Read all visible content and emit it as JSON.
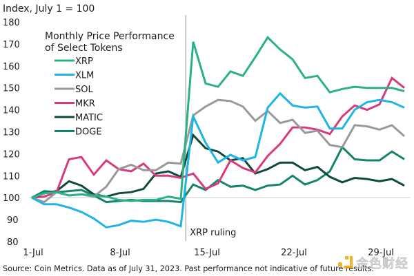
{
  "chart_data": {
    "type": "line",
    "title": "Monthly Price Performance of Select Tokens",
    "title_lines": [
      "Monthly Price Performance",
      "of Select Tokens"
    ],
    "ylabel": "Index, July 1 = 100",
    "xlabel": "",
    "ylim": [
      80,
      180
    ],
    "yticks": [
      80,
      90,
      100,
      110,
      120,
      130,
      140,
      150,
      160,
      170,
      180
    ],
    "ytick_labels": [
      "80",
      "90",
      "100",
      "110",
      "120",
      "130",
      "140",
      "150",
      "160",
      "170",
      "180"
    ],
    "x_days": [
      1,
      2,
      3,
      4,
      5,
      6,
      7,
      8,
      9,
      10,
      11,
      12,
      13,
      14,
      15,
      16,
      17,
      18,
      19,
      20,
      21,
      22,
      23,
      24,
      25,
      26,
      27,
      28,
      29,
      30,
      31
    ],
    "xtick_days": [
      1,
      8,
      15,
      22,
      29
    ],
    "xtick_labels": [
      "1-Jul",
      "8-Jul",
      "15-Jul",
      "22-Jul",
      "29-Jul"
    ],
    "baseline": 100,
    "grid": false,
    "legend_position": "top-left",
    "annotation": {
      "label": "XRP ruling",
      "day": 13.4
    },
    "series": [
      {
        "name": "XRP",
        "color": "#2bb08a",
        "values": [
          100,
          102,
          102.5,
          101,
          101.5,
          101,
          100.5,
          99,
          98.5,
          99,
          99,
          100.5,
          99.5,
          171,
          152,
          150.5,
          157.5,
          155.5,
          164,
          173,
          167.5,
          163,
          154.5,
          155.5,
          148,
          149.5,
          150.5,
          150,
          150,
          150,
          148.5
        ]
      },
      {
        "name": "XLM",
        "color": "#1fb4e6",
        "values": [
          100,
          97,
          97,
          95.5,
          93.5,
          90.5,
          86.5,
          87.5,
          89.5,
          89,
          90,
          89,
          87,
          137,
          125,
          116,
          119.5,
          117,
          118.5,
          141,
          147.5,
          142,
          141,
          141.5,
          131.5,
          131.5,
          140,
          143.5,
          144.5,
          143.5,
          141
        ]
      },
      {
        "name": "SOL",
        "color": "#999999",
        "values": [
          100,
          98,
          102.5,
          101,
          101.5,
          100.5,
          105,
          113,
          115,
          112.5,
          112.5,
          116,
          115.5,
          137.5,
          141.5,
          144.5,
          144,
          141.5,
          135,
          139.5,
          134,
          135.5,
          129.5,
          130.5,
          124,
          123,
          133,
          132.5,
          131,
          133,
          128
        ]
      },
      {
        "name": "MKR",
        "color": "#d9397e",
        "values": [
          100,
          100.5,
          102.5,
          117.5,
          118.5,
          110.5,
          117,
          113,
          112,
          115.5,
          110,
          110,
          109,
          111,
          104,
          106.5,
          117,
          113.5,
          111.5,
          119,
          124.5,
          132,
          132,
          131,
          129,
          137,
          142,
          140,
          142.5,
          154.5,
          150
        ]
      },
      {
        "name": "MATIC",
        "color": "#0d4a3a",
        "values": [
          100,
          102,
          103,
          107.5,
          105.5,
          101.5,
          100.5,
          102,
          102.5,
          104,
          111,
          112,
          109.5,
          128.5,
          122.5,
          121,
          117,
          118,
          111,
          113,
          116,
          116,
          112.5,
          114,
          109.5,
          107,
          109,
          108.5,
          107.5,
          108.5,
          105.5
        ]
      },
      {
        "name": "DOGE",
        "color": "#14856a",
        "values": [
          100,
          103,
          102.5,
          103,
          103.5,
          101,
          98,
          98.5,
          99,
          98.5,
          98.5,
          98.5,
          98,
          106,
          103.5,
          108,
          105,
          105.5,
          103.5,
          105.5,
          106,
          110,
          106,
          108,
          112,
          123,
          117.5,
          117,
          117,
          121,
          117.5
        ]
      }
    ]
  },
  "footer": {
    "source": "Source: Coin Metrics. Data as of July 31, 2023. Past performance not indicative of future results."
  },
  "watermark": {
    "text": "金色财经"
  }
}
